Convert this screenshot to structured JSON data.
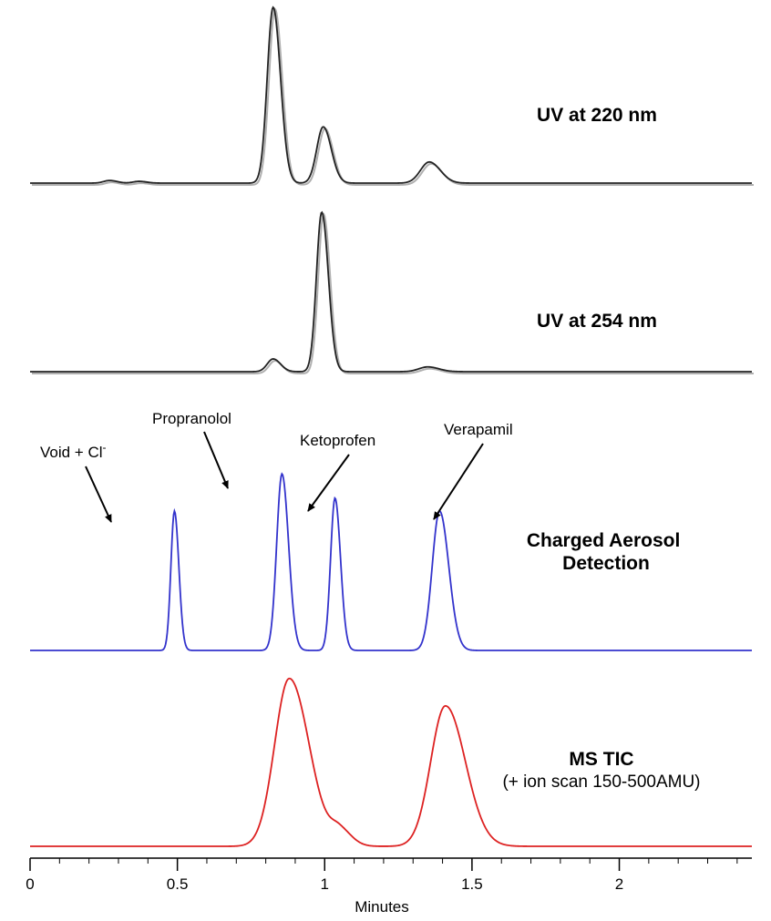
{
  "chart_data": {
    "type": "line",
    "xlabel": "Minutes",
    "xlim": [
      0,
      2.45
    ],
    "xticks": [
      {
        "value": 0,
        "label": "0"
      },
      {
        "value": 0.5,
        "label": "0.5"
      },
      {
        "value": 1,
        "label": "1"
      },
      {
        "value": 1.5,
        "label": "1.5"
      },
      {
        "value": 2,
        "label": "2"
      }
    ],
    "minor_tick_step": 0.1,
    "grid": false,
    "series": [
      {
        "name": "UV at 220 nm",
        "color": "#222222",
        "baseline": 0.0,
        "peaks": [
          {
            "rt": 0.27,
            "height": 0.015,
            "width": 0.02
          },
          {
            "rt": 0.37,
            "height": 0.01,
            "width": 0.02
          },
          {
            "rt": 0.825,
            "height": 1.0,
            "width": 0.02
          },
          {
            "rt": 0.995,
            "height": 0.32,
            "width": 0.022
          },
          {
            "rt": 1.355,
            "height": 0.12,
            "width": 0.03
          }
        ]
      },
      {
        "name": "UV at 254 nm",
        "color": "#222222",
        "baseline": 0.0,
        "peaks": [
          {
            "rt": 0.825,
            "height": 0.08,
            "width": 0.02
          },
          {
            "rt": 0.99,
            "height": 1.0,
            "width": 0.018
          },
          {
            "rt": 1.35,
            "height": 0.03,
            "width": 0.03
          }
        ]
      },
      {
        "name": "Charged Aerosol Detection",
        "color": "#3333cc",
        "baseline": 0.0,
        "peaks": [
          {
            "rt": 0.49,
            "height": 0.75,
            "width": 0.012
          },
          {
            "rt": 0.855,
            "height": 0.95,
            "width": 0.018
          },
          {
            "rt": 1.035,
            "height": 0.82,
            "width": 0.015
          },
          {
            "rt": 1.39,
            "height": 0.75,
            "width": 0.025
          }
        ]
      },
      {
        "name": "MS TIC",
        "subtitle": "(+ ion scan 150-500AMU)",
        "color": "#dd2222",
        "baseline": 0.0,
        "peaks": [
          {
            "rt": 0.88,
            "height": 0.98,
            "width": 0.05
          },
          {
            "rt": 1.05,
            "height": 0.09,
            "width": 0.03
          },
          {
            "rt": 1.41,
            "height": 0.82,
            "width": 0.05
          }
        ]
      }
    ],
    "annotations": [
      {
        "text": "Void + Cl",
        "superscript": "-",
        "peak_rt": 0.49
      },
      {
        "text": "Propranolol",
        "peak_rt": 0.855
      },
      {
        "text": "Ketoprofen",
        "peak_rt": 1.035
      },
      {
        "text": "Verapamil",
        "peak_rt": 1.39
      }
    ]
  }
}
